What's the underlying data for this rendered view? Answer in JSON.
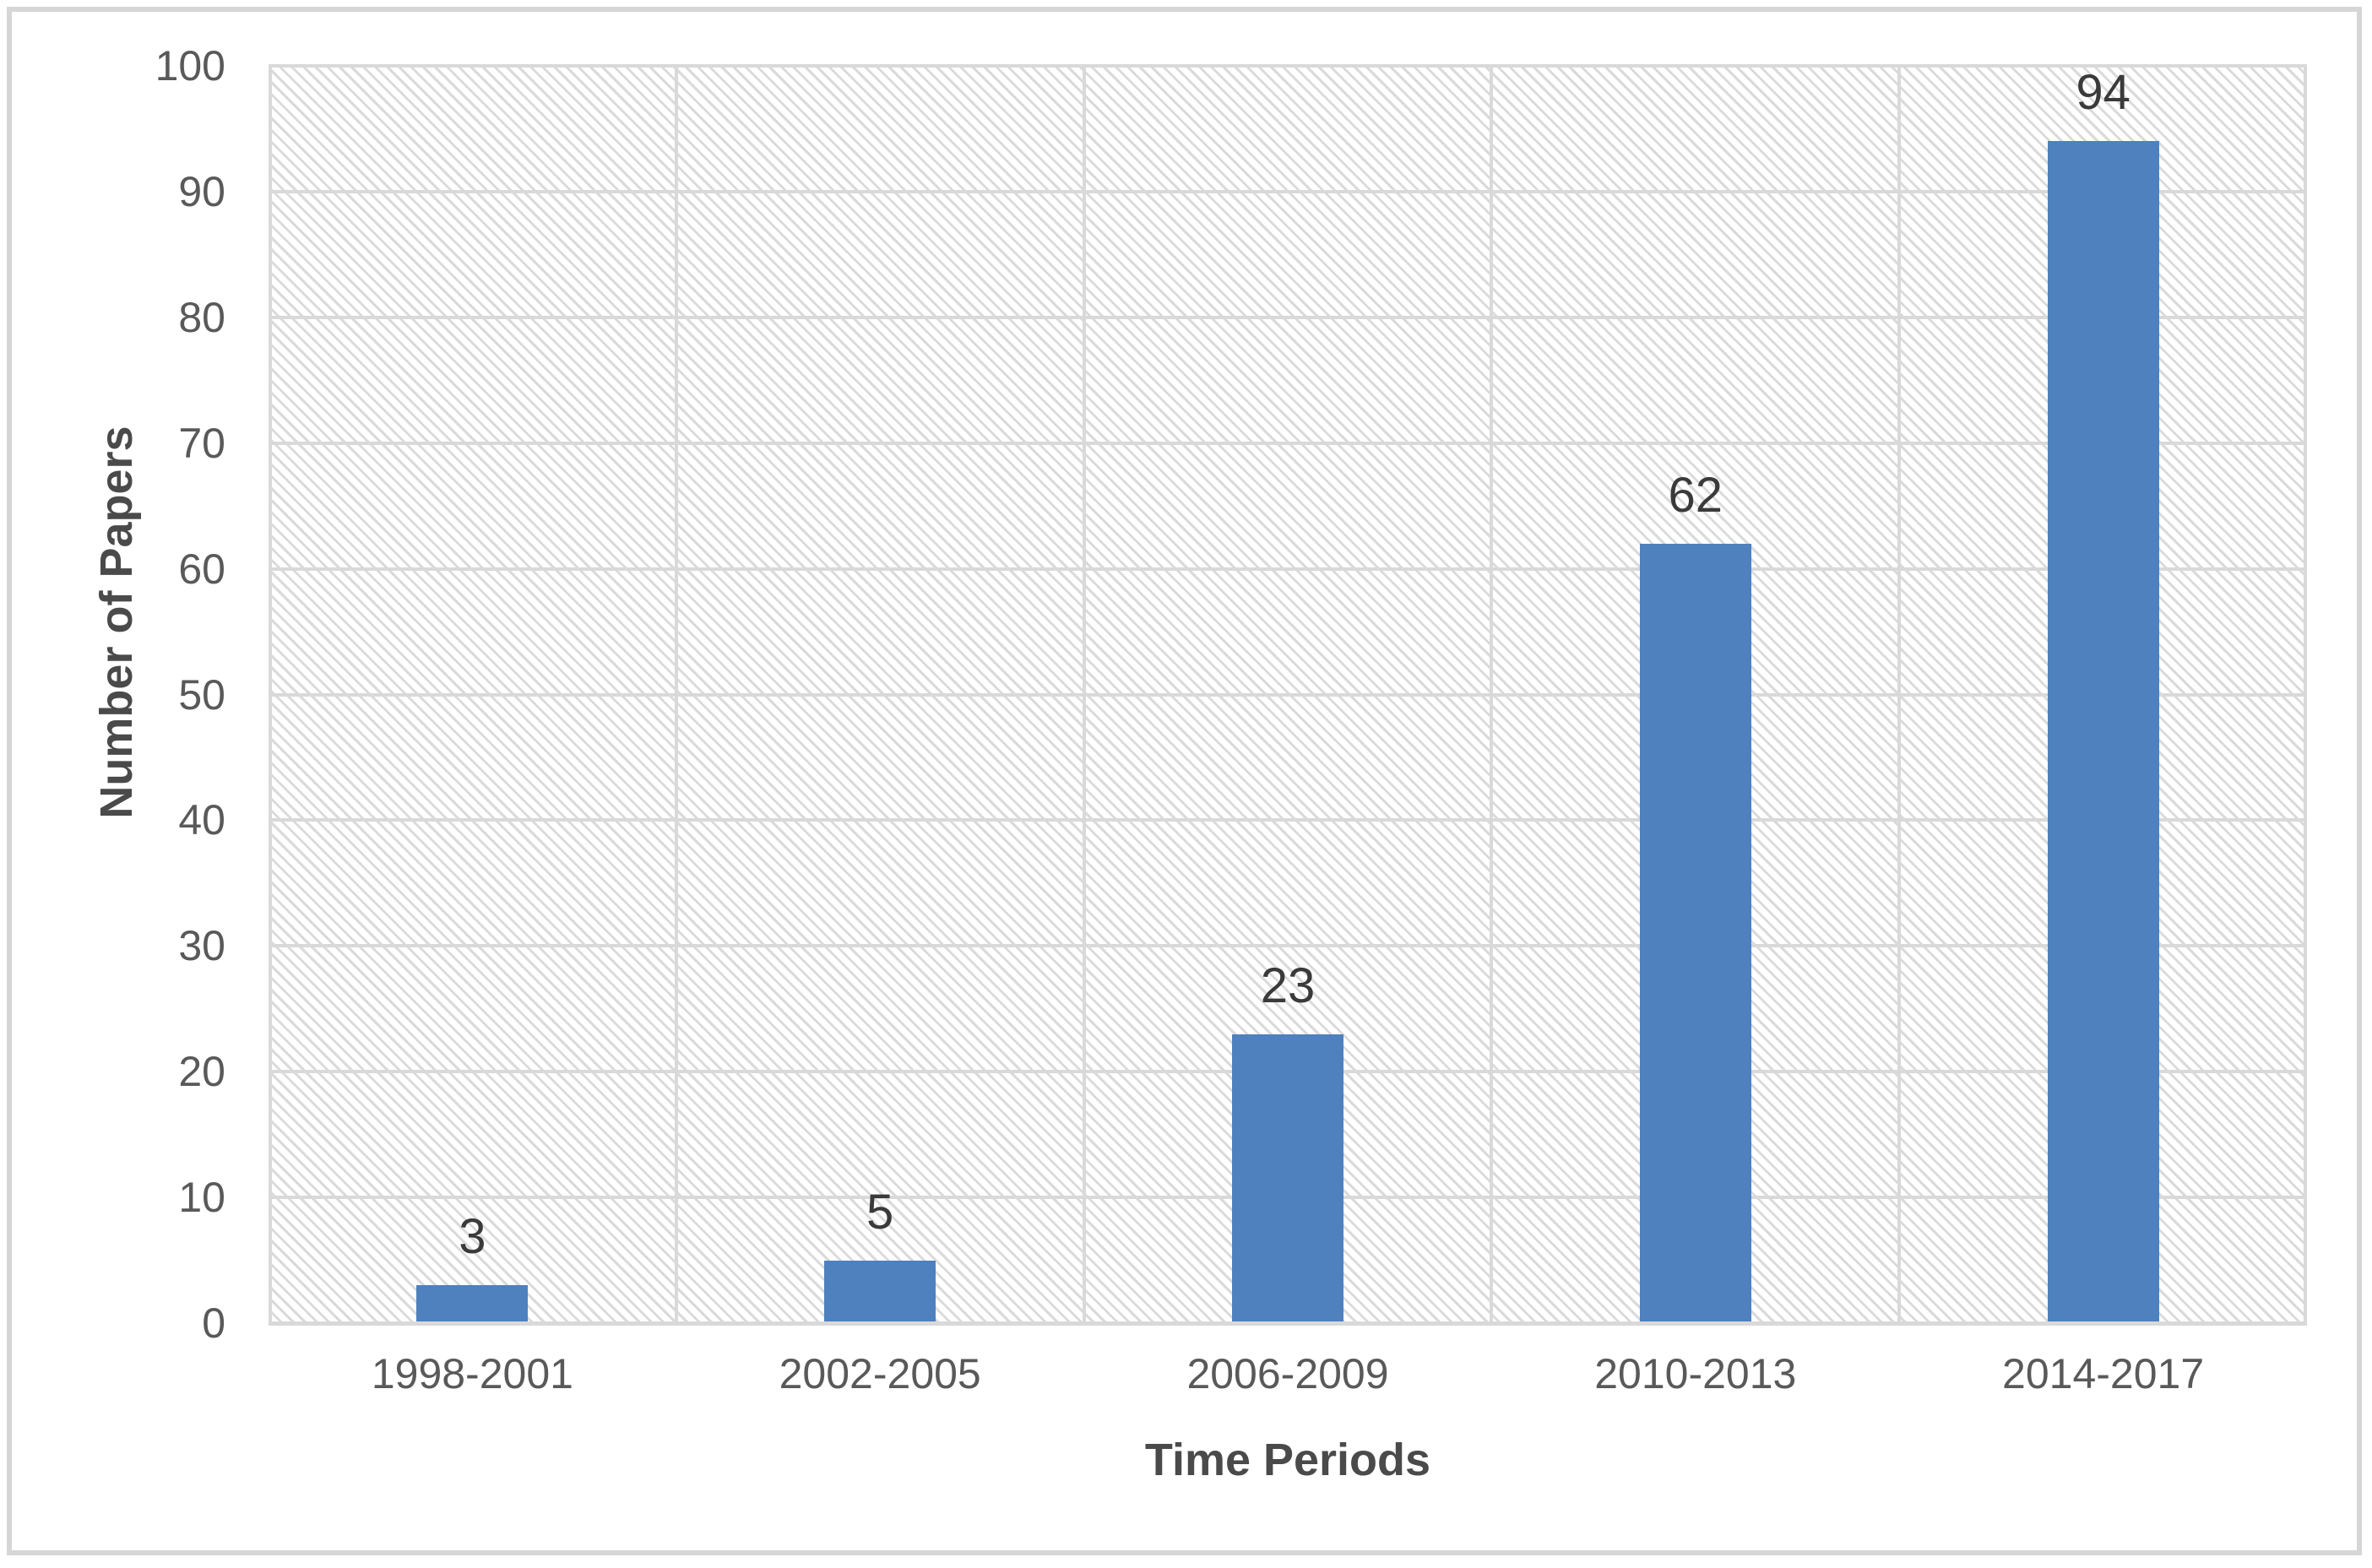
{
  "chart_data": {
    "type": "bar",
    "title": "",
    "categories": [
      "1998-2001",
      "2002-2005",
      "2006-2009",
      "2010-2013",
      "2014-2017"
    ],
    "values": [
      3,
      5,
      23,
      62,
      94
    ],
    "data_labels": [
      "3",
      "5",
      "23",
      "62",
      "94"
    ],
    "xlabel": "Time Periods",
    "ylabel": "Number of Papers",
    "ylim": [
      0,
      100
    ],
    "ytick_step": 10,
    "yticks": [
      "0",
      "10",
      "20",
      "30",
      "40",
      "50",
      "60",
      "70",
      "80",
      "90",
      "100"
    ],
    "legend": "none",
    "grid": "horizontal gridlines every 10 units and vertical category boundary lines",
    "plot_background": "light gray diagonal hatch pattern on white",
    "colors": {
      "bar_fill": "#4e81bd",
      "gridline": "#d9d9d9",
      "hatch": "#dadada",
      "tick_label": "#595959",
      "data_label": "#3a3a3a",
      "axis_title": "#4a4a4a",
      "outer_border": "#d6d6d6",
      "background": "#ffffff"
    }
  }
}
